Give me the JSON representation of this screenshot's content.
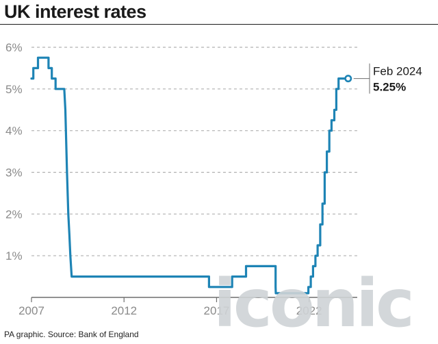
{
  "header": {
    "title": "UK interest rates"
  },
  "footer": {
    "source": "PA graphic. Source: Bank of England"
  },
  "watermark": {
    "text": "iconic"
  },
  "colors": {
    "line": "#1e84b5",
    "grid": "#b0b0b0",
    "axis": "#6e6e6e"
  },
  "chart_data": {
    "type": "line",
    "title": "UK interest rates",
    "xlabel": "",
    "ylabel": "",
    "xlim": [
      2007.0,
      2024.6
    ],
    "ylim": [
      0,
      6
    ],
    "x_ticks": [
      2007,
      2012,
      2017,
      2022
    ],
    "y_ticks": [
      1,
      2,
      3,
      4,
      5,
      6
    ],
    "y_tick_labels": [
      "1%",
      "2%",
      "3%",
      "4%",
      "5%",
      "6%"
    ],
    "x_tick_labels": [
      "2007",
      "2012",
      "2017",
      "2022"
    ],
    "grid": true,
    "series": [
      {
        "values": [
          [
            2007.0,
            5.25
          ],
          [
            2007.1,
            5.25
          ],
          [
            2007.1,
            5.5
          ],
          [
            2007.35,
            5.5
          ],
          [
            2007.35,
            5.75
          ],
          [
            2007.92,
            5.75
          ],
          [
            2007.92,
            5.5
          ],
          [
            2008.1,
            5.5
          ],
          [
            2008.1,
            5.25
          ],
          [
            2008.3,
            5.25
          ],
          [
            2008.3,
            5.0
          ],
          [
            2008.77,
            5.0
          ],
          [
            2008.83,
            4.5
          ],
          [
            2008.92,
            3.0
          ],
          [
            2008.99,
            2.0
          ],
          [
            2009.05,
            1.5
          ],
          [
            2009.1,
            1.0
          ],
          [
            2009.17,
            0.5
          ],
          [
            2016.59,
            0.5
          ],
          [
            2016.59,
            0.25
          ],
          [
            2017.84,
            0.25
          ],
          [
            2017.84,
            0.5
          ],
          [
            2018.59,
            0.5
          ],
          [
            2018.59,
            0.75
          ],
          [
            2020.19,
            0.75
          ],
          [
            2020.19,
            0.25
          ],
          [
            2020.2,
            0.1
          ],
          [
            2021.96,
            0.1
          ],
          [
            2021.96,
            0.25
          ],
          [
            2022.09,
            0.25
          ],
          [
            2022.09,
            0.5
          ],
          [
            2022.21,
            0.5
          ],
          [
            2022.21,
            0.75
          ],
          [
            2022.34,
            0.75
          ],
          [
            2022.34,
            1.0
          ],
          [
            2022.46,
            1.0
          ],
          [
            2022.46,
            1.25
          ],
          [
            2022.6,
            1.25
          ],
          [
            2022.6,
            1.75
          ],
          [
            2022.72,
            1.75
          ],
          [
            2022.72,
            2.25
          ],
          [
            2022.84,
            2.25
          ],
          [
            2022.84,
            3.0
          ],
          [
            2022.96,
            3.0
          ],
          [
            2022.96,
            3.5
          ],
          [
            2023.09,
            3.5
          ],
          [
            2023.09,
            4.0
          ],
          [
            2023.21,
            4.0
          ],
          [
            2023.21,
            4.25
          ],
          [
            2023.36,
            4.25
          ],
          [
            2023.36,
            4.5
          ],
          [
            2023.47,
            4.5
          ],
          [
            2023.47,
            5.0
          ],
          [
            2023.59,
            5.0
          ],
          [
            2023.59,
            5.25
          ],
          [
            2024.11,
            5.25
          ]
        ]
      }
    ],
    "annotation": {
      "x": 2024.11,
      "y": 5.25,
      "date": "Feb 2024",
      "value": "5.25%"
    }
  }
}
